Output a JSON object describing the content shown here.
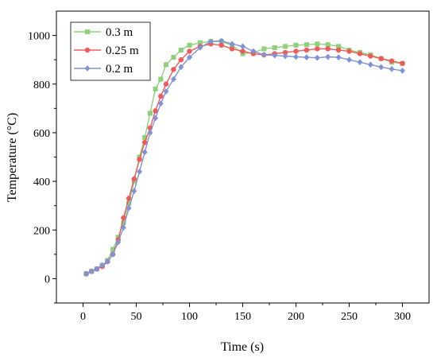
{
  "chart_data": {
    "type": "line",
    "title": "",
    "xlabel": "Time (s)",
    "ylabel": "Temperature (°C)",
    "xlim": [
      -25,
      325
    ],
    "ylim": [
      -100,
      1100
    ],
    "xticks": [
      0,
      50,
      100,
      150,
      200,
      250,
      300
    ],
    "yticks": [
      0,
      200,
      400,
      600,
      800,
      1000
    ],
    "grid": false,
    "legend_position": "top-left",
    "series": [
      {
        "name": "0.3 m",
        "color": "#8fd17b",
        "marker": "square",
        "x": [
          3,
          8,
          13,
          18,
          23,
          28,
          33,
          38,
          43,
          48,
          53,
          58,
          63,
          68,
          73,
          78,
          85,
          92,
          100,
          110,
          120,
          130,
          140,
          150,
          160,
          170,
          180,
          190,
          200,
          210,
          220,
          230,
          240,
          250,
          260,
          270,
          280,
          290,
          300
        ],
        "y": [
          20,
          30,
          40,
          55,
          75,
          120,
          170,
          230,
          310,
          400,
          500,
          580,
          680,
          780,
          820,
          880,
          910,
          940,
          960,
          970,
          975,
          975,
          960,
          925,
          930,
          945,
          950,
          955,
          960,
          962,
          965,
          962,
          955,
          940,
          930,
          920,
          905,
          890,
          885
        ]
      },
      {
        "name": "0.25 m",
        "color": "#f05a5a",
        "marker": "circle",
        "x": [
          3,
          8,
          13,
          18,
          23,
          28,
          33,
          38,
          43,
          48,
          53,
          58,
          63,
          68,
          73,
          78,
          85,
          92,
          100,
          110,
          120,
          130,
          140,
          150,
          160,
          170,
          180,
          190,
          200,
          210,
          220,
          230,
          240,
          250,
          260,
          270,
          280,
          290,
          300
        ],
        "y": [
          20,
          30,
          40,
          50,
          70,
          100,
          160,
          250,
          330,
          410,
          490,
          560,
          620,
          690,
          750,
          800,
          860,
          900,
          935,
          955,
          965,
          960,
          945,
          935,
          925,
          920,
          925,
          930,
          935,
          940,
          945,
          945,
          940,
          935,
          925,
          915,
          905,
          895,
          885
        ]
      },
      {
        "name": "0.2 m",
        "color": "#7f93d6",
        "marker": "diamond",
        "x": [
          3,
          8,
          13,
          18,
          23,
          28,
          33,
          38,
          43,
          48,
          53,
          58,
          63,
          68,
          73,
          78,
          85,
          92,
          100,
          110,
          120,
          130,
          140,
          150,
          160,
          170,
          180,
          190,
          200,
          210,
          220,
          230,
          240,
          250,
          260,
          270,
          280,
          290,
          300
        ],
        "y": [
          20,
          30,
          40,
          55,
          70,
          100,
          150,
          210,
          290,
          360,
          440,
          520,
          600,
          660,
          720,
          770,
          820,
          870,
          910,
          950,
          975,
          978,
          965,
          955,
          935,
          920,
          918,
          915,
          912,
          910,
          908,
          912,
          910,
          900,
          890,
          880,
          870,
          862,
          855
        ]
      }
    ]
  }
}
